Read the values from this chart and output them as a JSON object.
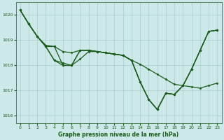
{
  "background_color": "#cce8e8",
  "plot_bg_color": "#cce8e8",
  "line_color": "#1a5c1a",
  "grid_color": "#aacccc",
  "xlabel": "Graphe pression niveau de la mer (hPa)",
  "xlabel_color": "#1a5c1a",
  "tick_color": "#1a5c1a",
  "ylim": [
    1015.7,
    1020.5
  ],
  "xlim": [
    -0.5,
    23.5
  ],
  "yticks": [
    1016,
    1017,
    1018,
    1019,
    1020
  ],
  "xticks": [
    0,
    1,
    2,
    3,
    4,
    5,
    6,
    7,
    8,
    9,
    10,
    11,
    12,
    13,
    14,
    15,
    16,
    17,
    18,
    19,
    20,
    21,
    22,
    23
  ],
  "series": [
    [
      1020.2,
      1019.65,
      1019.15,
      1018.8,
      1018.75,
      1018.55,
      1018.5,
      1018.6,
      1018.6,
      1018.55,
      1018.5,
      1018.45,
      1018.4,
      1018.2,
      1018.05,
      1017.85,
      1017.65,
      1017.45,
      1017.25,
      1017.2,
      1017.15,
      1017.1,
      1017.2,
      1017.3
    ],
    [
      1020.2,
      1019.65,
      1019.15,
      1018.75,
      1018.75,
      1018.0,
      1018.0,
      1018.6,
      1018.6,
      1018.55,
      1018.5,
      1018.45,
      1018.4,
      1018.2,
      1017.35,
      1016.65,
      1016.25,
      1016.9,
      1016.85,
      1017.2,
      1017.85,
      1018.6,
      1019.35,
      1019.4
    ],
    [
      1020.2,
      1019.65,
      1019.15,
      1018.75,
      1018.2,
      1018.0,
      1018.0,
      1018.6,
      1018.6,
      1018.55,
      1018.5,
      1018.45,
      1018.4,
      1018.2,
      1017.35,
      1016.65,
      1016.25,
      1016.9,
      1016.85,
      1017.2,
      1017.85,
      1018.6,
      1019.35,
      1019.4
    ],
    [
      1020.2,
      1019.65,
      1019.15,
      1018.75,
      1018.2,
      1018.1,
      1018.0,
      1018.25,
      1018.55,
      1018.55,
      1018.5,
      1018.45,
      1018.4,
      1018.2,
      1017.35,
      1016.65,
      1016.25,
      1016.9,
      1016.85,
      1017.2,
      1017.85,
      1018.6,
      1019.35,
      1019.4
    ]
  ]
}
